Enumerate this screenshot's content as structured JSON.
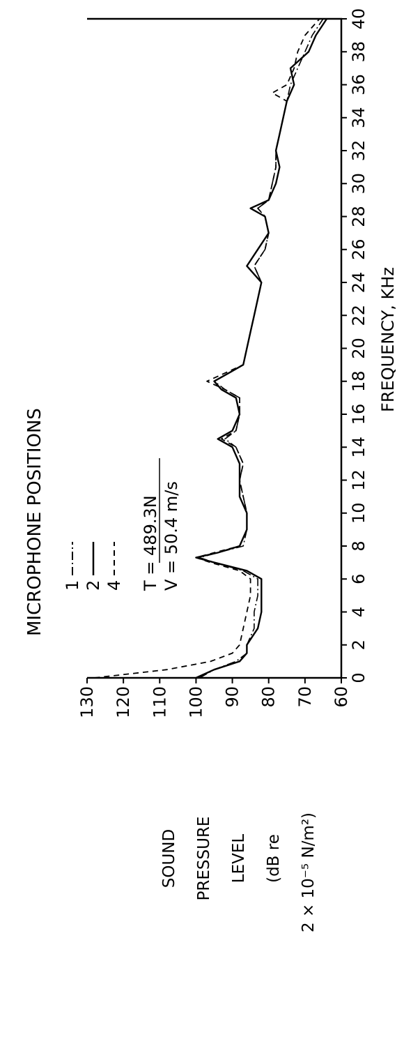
{
  "chart_data": {
    "type": "line",
    "title": "MICROPHONE POSITIONS",
    "xlabel": "FREQUENCY, KHz",
    "ylabel_lines": [
      "SOUND",
      "PRESSURE",
      "LEVEL",
      "(dB re",
      "2 × 10⁻⁵ N/m²)"
    ],
    "x_ticks": [
      "0",
      "2",
      "4",
      "6",
      "8",
      "10",
      "12",
      "14",
      "16",
      "18",
      "20",
      "22",
      "24",
      "26",
      "28",
      "30",
      "32",
      "34",
      "36",
      "38",
      "40"
    ],
    "y_ticks": [
      "60",
      "70",
      "80",
      "90",
      "100",
      "110",
      "120",
      "130"
    ],
    "xlim": [
      0,
      40
    ],
    "ylim": [
      60,
      130
    ],
    "grid": false,
    "legend_position": "top-left",
    "conditions": [
      "T = 489.3N",
      "V = 50.4 m/s"
    ],
    "series": [
      {
        "name": "1",
        "style": "dash-dot",
        "x": [
          0,
          0.5,
          1,
          1.5,
          2,
          3,
          4,
          5,
          6,
          6.5,
          7,
          7.3,
          7.6,
          8,
          9,
          10,
          11,
          12,
          13,
          14,
          14.5,
          15,
          16,
          17,
          17.5,
          18,
          18.5,
          19,
          20,
          21,
          22,
          23,
          24,
          25,
          26,
          27,
          28,
          28.5,
          29,
          30,
          31,
          32,
          33,
          34,
          35,
          36,
          37,
          38,
          39,
          40
        ],
        "y": [
          99,
          95,
          89,
          86,
          86,
          84,
          84,
          83,
          83,
          87,
          95,
          99,
          94,
          87,
          86,
          86,
          87,
          88,
          87,
          89,
          92,
          89,
          88,
          88,
          92,
          95,
          91,
          87,
          86,
          85,
          84,
          83,
          82,
          84,
          81,
          80,
          81,
          83,
          80,
          79,
          78,
          78,
          77,
          76,
          75,
          74,
          72,
          70,
          68,
          65
        ]
      },
      {
        "name": "2",
        "style": "solid",
        "x": [
          0,
          0.5,
          1,
          1.5,
          2,
          3,
          4,
          5,
          6,
          6.5,
          7,
          7.3,
          7.6,
          8,
          9,
          10,
          11,
          12,
          13,
          14,
          14.5,
          15,
          16,
          17,
          17.5,
          18,
          18.5,
          19,
          20,
          21,
          22,
          23,
          24,
          25,
          26,
          27,
          28,
          28.5,
          29,
          30,
          31,
          32,
          33,
          34,
          35,
          36,
          37,
          38,
          39,
          40
        ],
        "y": [
          100,
          95,
          88,
          86,
          86,
          83,
          82,
          82,
          82,
          86,
          95,
          100,
          94,
          88,
          86,
          86,
          88,
          88,
          88,
          90,
          94,
          90,
          88,
          89,
          93,
          95,
          91,
          87,
          86,
          85,
          84,
          83,
          82,
          86,
          83,
          80,
          81,
          85,
          80,
          78,
          77,
          78,
          77,
          76,
          75,
          73,
          74,
          69,
          67,
          64
        ]
      },
      {
        "name": "4",
        "style": "dashed",
        "x": [
          0,
          0.25,
          0.5,
          1,
          1.5,
          2,
          3,
          4,
          5,
          6,
          6.5,
          7,
          7.3,
          7.6,
          8,
          9,
          10,
          11,
          12,
          13,
          14,
          14.5,
          15,
          16,
          17,
          17.5,
          18,
          18.5,
          19,
          20,
          21,
          22,
          23,
          24,
          25,
          26,
          27,
          28,
          28.5,
          29,
          30,
          31,
          32,
          33,
          34,
          35,
          35.5,
          36,
          37,
          38,
          39,
          40
        ],
        "y": [
          128,
          118,
          108,
          96,
          90,
          88,
          87,
          86,
          85,
          85,
          88,
          96,
          100,
          95,
          88,
          86,
          86,
          87,
          88,
          87,
          89,
          93,
          89,
          88,
          88,
          92,
          97,
          92,
          87,
          86,
          85,
          84,
          83,
          82,
          84,
          81,
          80,
          81,
          83,
          80,
          79,
          78,
          78,
          77,
          76,
          75,
          79,
          75,
          73,
          72,
          70,
          66
        ]
      }
    ]
  }
}
